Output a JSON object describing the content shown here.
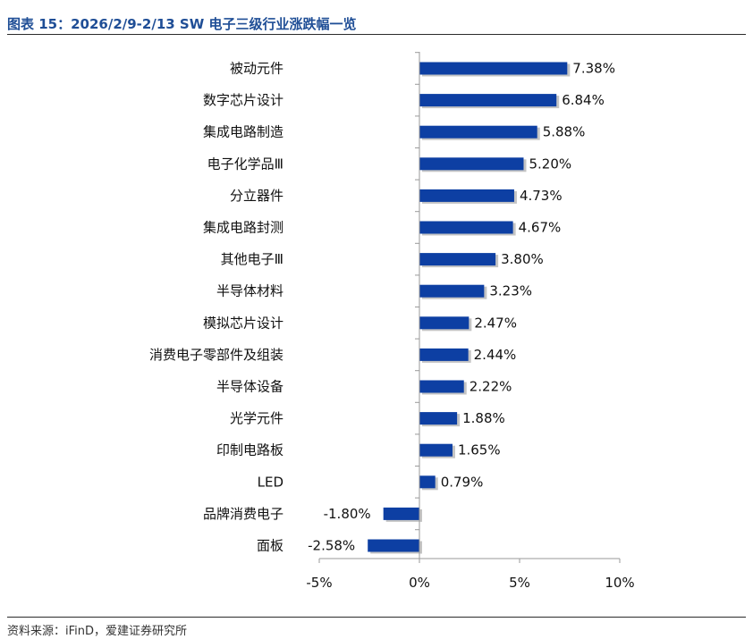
{
  "title": "图表 15：2026/2/9-2/13 SW 电子三级行业涨跌幅一览",
  "source": "资料来源：iFinD，爱建证券研究所",
  "chart_data": {
    "type": "bar",
    "orientation": "horizontal",
    "categories": [
      "被动元件",
      "数字芯片设计",
      "集成电路制造",
      "电子化学品Ⅲ",
      "分立器件",
      "集成电路封测",
      "其他电子Ⅲ",
      "半导体材料",
      "模拟芯片设计",
      "消费电子零部件及组装",
      "半导体设备",
      "光学元件",
      "印制电路板",
      "LED",
      "品牌消费电子",
      "面板"
    ],
    "values": [
      7.38,
      6.84,
      5.88,
      5.2,
      4.73,
      4.67,
      3.8,
      3.23,
      2.47,
      2.44,
      2.22,
      1.88,
      1.65,
      0.79,
      -1.8,
      -2.58
    ],
    "value_labels": [
      "7.38%",
      "6.84%",
      "5.88%",
      "5.20%",
      "4.73%",
      "4.67%",
      "3.80%",
      "3.23%",
      "2.47%",
      "2.44%",
      "2.22%",
      "1.88%",
      "1.65%",
      "0.79%",
      "-1.80%",
      "-2.58%"
    ],
    "xlim": [
      -5,
      10
    ],
    "xticks": [
      -5,
      0,
      5,
      10
    ],
    "xtick_labels": [
      "-5%",
      "0%",
      "5%",
      "10%"
    ],
    "unit": "%",
    "bar_color": "#0d3fa3",
    "shadow_color": "#c4c4c4",
    "grid": false
  }
}
